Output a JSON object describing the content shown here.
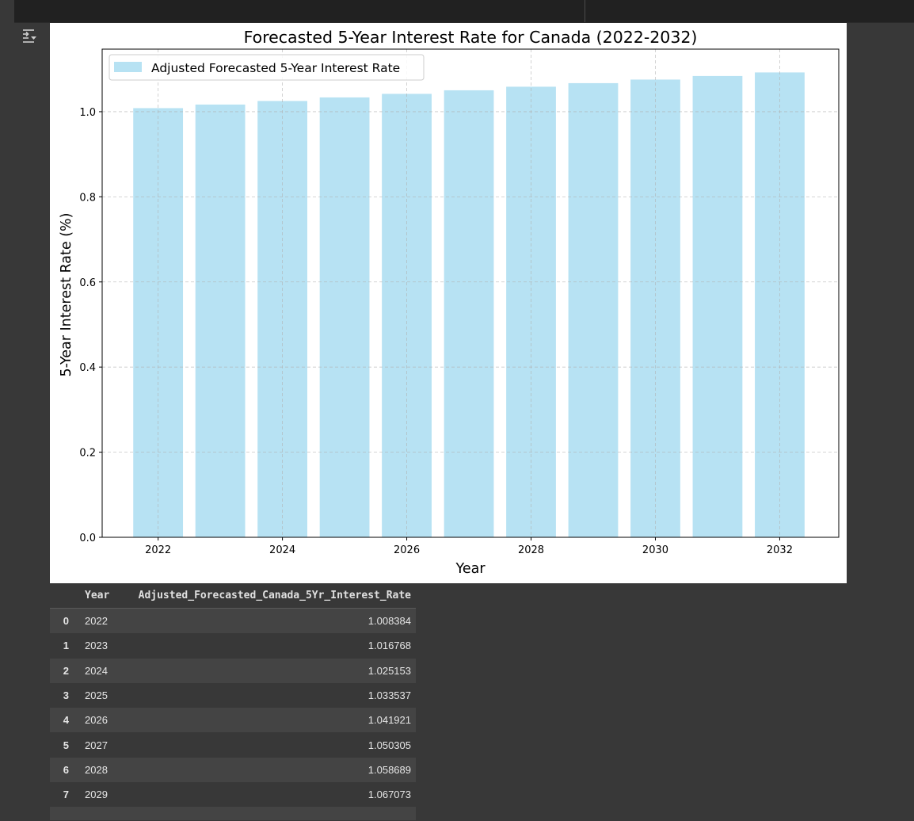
{
  "toolbar": {
    "output_icon": "output-settings-icon"
  },
  "chart_data": {
    "type": "bar",
    "title": "Forecasted 5-Year Interest Rate for Canada (2022-2032)",
    "xlabel": "Year",
    "ylabel": "5-Year Interest Rate (%)",
    "categories": [
      2022,
      2023,
      2024,
      2025,
      2026,
      2027,
      2028,
      2029,
      2030,
      2031,
      2032
    ],
    "series": [
      {
        "name": "Adjusted Forecasted 5-Year Interest Rate",
        "values": [
          1.008384,
          1.016768,
          1.025153,
          1.033537,
          1.041921,
          1.050305,
          1.058689,
          1.067073,
          1.075458,
          1.083842,
          1.092226
        ],
        "color": "#87ceeb"
      }
    ],
    "xlim": [
      2021.1,
      2032.95
    ],
    "ylim": [
      0,
      1.147
    ],
    "xticks": [
      2022,
      2024,
      2026,
      2028,
      2030,
      2032
    ],
    "yticks": [
      0.0,
      0.2,
      0.4,
      0.6,
      0.8,
      1.0
    ],
    "ytick_labels": [
      "0.0",
      "0.2",
      "0.4",
      "0.6",
      "0.8",
      "1.0"
    ],
    "grid": true,
    "legend_position": "top-left"
  },
  "table": {
    "columns": [
      "",
      "Year",
      "Adjusted_Forecasted_Canada_5Yr_Interest_Rate"
    ],
    "rows": [
      {
        "index": "0",
        "year": "2022",
        "rate": "1.008384"
      },
      {
        "index": "1",
        "year": "2023",
        "rate": "1.016768"
      },
      {
        "index": "2",
        "year": "2024",
        "rate": "1.025153"
      },
      {
        "index": "3",
        "year": "2025",
        "rate": "1.033537"
      },
      {
        "index": "4",
        "year": "2026",
        "rate": "1.041921"
      },
      {
        "index": "5",
        "year": "2027",
        "rate": "1.050305"
      },
      {
        "index": "6",
        "year": "2028",
        "rate": "1.058689"
      },
      {
        "index": "7",
        "year": "2029",
        "rate": "1.067073"
      }
    ]
  }
}
